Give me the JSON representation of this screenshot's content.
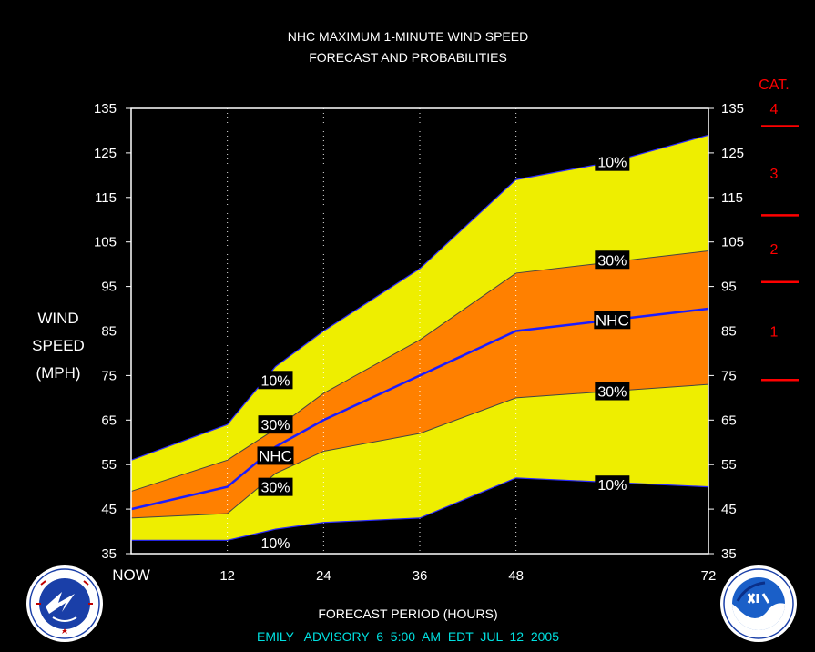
{
  "chart_data": {
    "type": "area",
    "title": "NHC MAXIMUM 1-MINUTE WIND SPEED",
    "subtitle": "FORECAST AND PROBABILITIES",
    "ylabel_lines": [
      "WIND",
      "SPEED",
      "(MPH)"
    ],
    "xlabel": "FORECAST PERIOD (HOURS)",
    "footer": "EMILY   ADVISORY  6  5:00  AM  EDT  JUL  12  2005",
    "x_ticks": [
      0,
      12,
      24,
      36,
      48,
      72
    ],
    "x_tick_labels": [
      "NOW",
      "12",
      "24",
      "36",
      "48",
      "72"
    ],
    "ylim": [
      35,
      135
    ],
    "y_ticks": [
      35,
      45,
      55,
      65,
      75,
      85,
      95,
      105,
      115,
      125,
      135
    ],
    "grid_x_dotted": [
      12,
      24,
      36,
      48
    ],
    "x": [
      0,
      12,
      18,
      24,
      36,
      48,
      60,
      72
    ],
    "series": [
      {
        "name": "10%",
        "role": "upper-10",
        "values": [
          56,
          64,
          77,
          85,
          99,
          119,
          123,
          129
        ]
      },
      {
        "name": "30%",
        "role": "upper-30",
        "values": [
          49,
          56,
          63,
          71,
          83,
          98,
          100.5,
          103
        ]
      },
      {
        "name": "NHC",
        "role": "nhc",
        "values": [
          45,
          50,
          59,
          65,
          75,
          85,
          87.5,
          90
        ]
      },
      {
        "name": "30%",
        "role": "lower-30",
        "values": [
          43,
          44,
          53,
          58,
          62,
          70,
          71.5,
          73
        ]
      },
      {
        "name": "10%",
        "role": "lower-10",
        "values": [
          38,
          38,
          40.5,
          42,
          43,
          52,
          51,
          50
        ]
      }
    ],
    "band_labels": [
      {
        "text": "10%",
        "x": 18,
        "y": 74
      },
      {
        "text": "30%",
        "x": 18,
        "y": 64
      },
      {
        "text": "NHC",
        "x": 18,
        "y": 57
      },
      {
        "text": "30%",
        "x": 18,
        "y": 50
      },
      {
        "text": "10%",
        "x": 18,
        "y": 37.5
      },
      {
        "text": "10%",
        "x": 60,
        "y": 123
      },
      {
        "text": "30%",
        "x": 60,
        "y": 101
      },
      {
        "text": "NHC",
        "x": 60,
        "y": 87.5
      },
      {
        "text": "30%",
        "x": 60,
        "y": 71.5
      },
      {
        "text": "10%",
        "x": 60,
        "y": 50.5
      }
    ],
    "categories_scale": {
      "header": "CAT.",
      "boundaries": [
        74,
        96,
        111,
        131
      ],
      "labels": [
        {
          "text": "1",
          "y": 85
        },
        {
          "text": "2",
          "y": 103.5
        },
        {
          "text": "3",
          "y": 120.5
        },
        {
          "text": "4",
          "y": 135
        }
      ]
    },
    "colors": {
      "background": "#000000",
      "outer_band": "#eeee00",
      "inner_band": "#ff8000",
      "nhc_line": "#1c1cff",
      "category": "#ff0000",
      "text": "#ffffff",
      "footer": "#00e0e0"
    }
  }
}
